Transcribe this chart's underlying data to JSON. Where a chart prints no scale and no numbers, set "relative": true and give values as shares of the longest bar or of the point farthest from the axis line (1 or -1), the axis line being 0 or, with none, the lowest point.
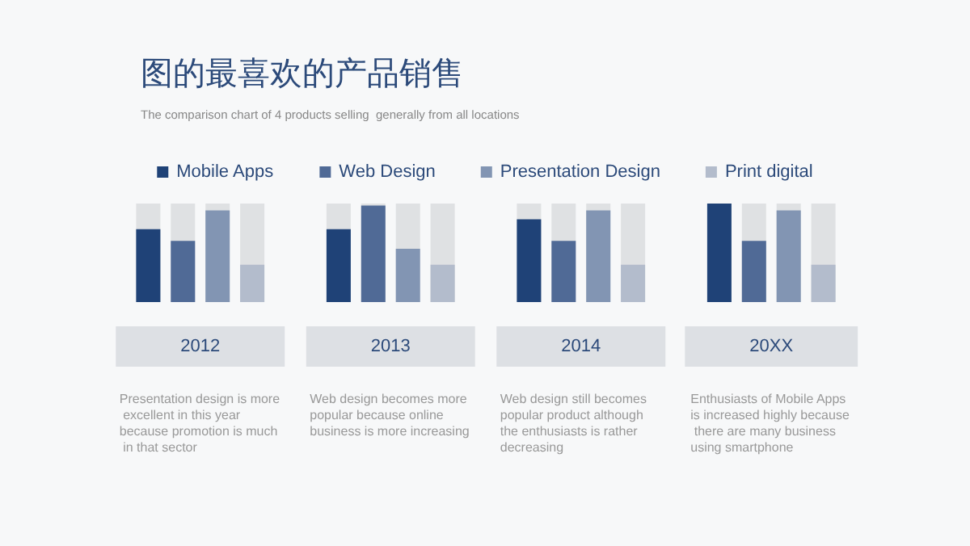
{
  "chart_data": {
    "type": "bar",
    "title": "图的最喜欢的产品销售",
    "subtitle": "The comparison chart of 4 products selling  generally from all locations",
    "categories": [
      "2012",
      "2013",
      "2014",
      "20XX"
    ],
    "relative": true,
    "legend": "top",
    "series": [
      {
        "name": "Mobile Apps",
        "color": "#1f4277",
        "values": [
          0.74,
          0.74,
          0.84,
          1
        ]
      },
      {
        "name": "Web Design",
        "color": "#506a96",
        "values": [
          0.62,
          0.98,
          0.62,
          0.62
        ]
      },
      {
        "name": "Presentation Design",
        "color": "#8295b3",
        "values": [
          0.93,
          0.54,
          0.93,
          0.93
        ]
      },
      {
        "name": "Print digital",
        "color": "#b3bccc",
        "values": [
          0.38,
          0.38,
          0.38,
          0.38
        ]
      }
    ],
    "annotations": [
      "Presentation design is more excellent in this year because promotion is much in that sector",
      "Web design becomes more popular because online business is more increasing",
      "Web design still becomes popular product although the enthusiasts is rather decreasing",
      "Enthusiasts of Mobile Apps is increased highly because there are many business using smartphone"
    ]
  }
}
